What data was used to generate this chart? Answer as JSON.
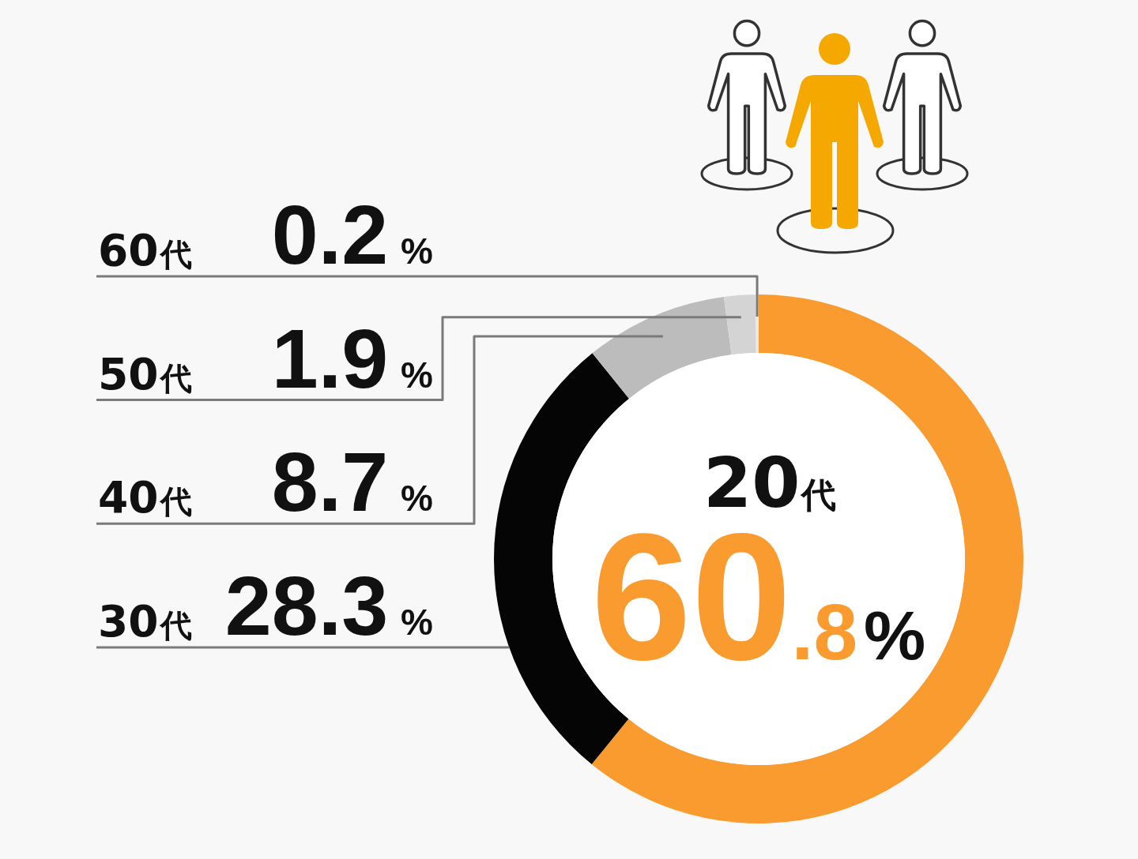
{
  "chart_data": {
    "type": "donut",
    "categories": [
      "20代",
      "30代",
      "40代",
      "50代",
      "60代"
    ],
    "values": [
      60.8,
      28.3,
      8.7,
      1.9,
      0.2
    ],
    "value_labels": [
      "60.8%",
      "28.3%",
      "8.7%",
      "1.9%",
      "0.2%"
    ],
    "colors": [
      "#f99b2e",
      "#050505",
      "#bcbcbc",
      "#d4d4d4",
      "#e8e8e8"
    ]
  }
}
